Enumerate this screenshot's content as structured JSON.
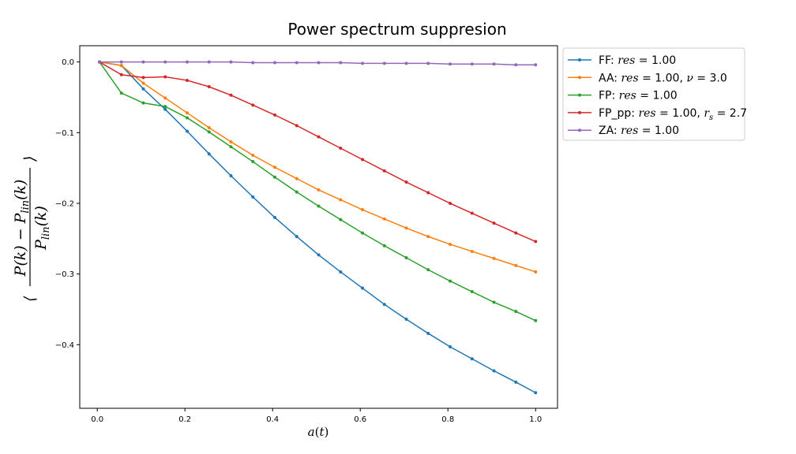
{
  "chart_data": {
    "type": "line",
    "title": "Power spectrum suppresion",
    "xlabel": "a(t)",
    "ylabel": "⟨(P(k) − P_lin(k)) / P_lin(k)⟩",
    "xlim": [
      -0.04,
      1.05
    ],
    "ylim": [
      -0.49,
      0.023
    ],
    "xticks": [
      0.0,
      0.2,
      0.4,
      0.6,
      0.8,
      1.0
    ],
    "xtick_labels": [
      "0.0",
      "0.2",
      "0.4",
      "0.6",
      "0.8",
      "1.0"
    ],
    "yticks": [
      0.0,
      -0.1,
      -0.2,
      -0.3,
      -0.4
    ],
    "ytick_labels": [
      "0.0",
      "−0.1",
      "−0.2",
      "−0.3",
      "−0.4"
    ],
    "legend_position": "outside-right-top",
    "grid": false,
    "x": [
      0.005,
      0.055,
      0.105,
      0.155,
      0.205,
      0.255,
      0.305,
      0.355,
      0.405,
      0.455,
      0.505,
      0.555,
      0.605,
      0.655,
      0.705,
      0.755,
      0.805,
      0.855,
      0.905,
      0.955,
      1.0
    ],
    "series": [
      {
        "name": "FF: res = 1.00",
        "label_parts": {
          "prefix": "FF: ",
          "math": "res",
          "rest": " = 1.00"
        },
        "color": "#1f77b4",
        "values": [
          0.0,
          -0.005,
          -0.038,
          -0.067,
          -0.098,
          -0.13,
          -0.161,
          -0.191,
          -0.22,
          -0.247,
          -0.273,
          -0.297,
          -0.32,
          -0.343,
          -0.364,
          -0.384,
          -0.403,
          -0.42,
          -0.437,
          -0.453,
          -0.468
        ]
      },
      {
        "name": "AA: res = 1.00, ν = 3.0",
        "label_parts": {
          "prefix": "AA: ",
          "math": "res",
          "rest": " = 1.00, ",
          "math2": "ν",
          "rest2": " = 3.0"
        },
        "color": "#ff7f0e",
        "values": [
          0.0,
          -0.005,
          -0.03,
          -0.051,
          -0.072,
          -0.093,
          -0.113,
          -0.132,
          -0.149,
          -0.165,
          -0.181,
          -0.195,
          -0.209,
          -0.222,
          -0.235,
          -0.247,
          -0.258,
          -0.268,
          -0.278,
          -0.288,
          -0.297
        ]
      },
      {
        "name": "FP: res = 1.00",
        "label_parts": {
          "prefix": "FP: ",
          "math": "res",
          "rest": " = 1.00"
        },
        "color": "#2ca02c",
        "values": [
          0.0,
          -0.044,
          -0.058,
          -0.063,
          -0.079,
          -0.099,
          -0.12,
          -0.141,
          -0.163,
          -0.184,
          -0.204,
          -0.223,
          -0.242,
          -0.26,
          -0.277,
          -0.294,
          -0.31,
          -0.325,
          -0.34,
          -0.353,
          -0.366
        ]
      },
      {
        "name": "FP_pp: res = 1.00, r_s = 2.7",
        "label_parts": {
          "prefix": "FP_pp: ",
          "math": "res",
          "rest": " = 1.00, ",
          "math2": "r",
          "sub2": "s",
          "rest2": " = 2.7"
        },
        "color": "#d62728",
        "values": [
          0.0,
          -0.018,
          -0.022,
          -0.021,
          -0.026,
          -0.035,
          -0.047,
          -0.061,
          -0.075,
          -0.09,
          -0.106,
          -0.122,
          -0.138,
          -0.154,
          -0.17,
          -0.185,
          -0.2,
          -0.214,
          -0.228,
          -0.242,
          -0.254
        ]
      },
      {
        "name": "ZA: res = 1.00",
        "label_parts": {
          "prefix": "ZA: ",
          "math": "res",
          "rest": " = 1.00"
        },
        "color": "#9467bd",
        "values": [
          0.0,
          0.0,
          0.0,
          0.0,
          0.0,
          0.0,
          0.0,
          -0.001,
          -0.001,
          -0.001,
          -0.001,
          -0.001,
          -0.002,
          -0.002,
          -0.002,
          -0.002,
          -0.003,
          -0.003,
          -0.003,
          -0.004,
          -0.004
        ]
      }
    ]
  }
}
